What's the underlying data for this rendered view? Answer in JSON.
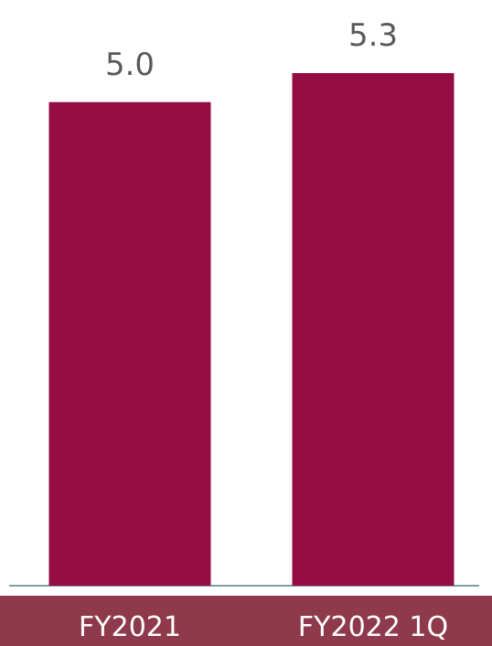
{
  "chart_data": {
    "type": "bar",
    "categories": [
      "FY2021",
      "FY2022 1Q"
    ],
    "values": [
      5.0,
      5.3
    ],
    "value_labels": [
      "5.0",
      "5.3"
    ],
    "title": "",
    "xlabel": "",
    "ylabel": "",
    "ylim": [
      0,
      5.3
    ],
    "grid": false,
    "legend": "none",
    "colors": {
      "bar": "#930c42",
      "category_band": "#8f3a4c",
      "baseline": "#4f7f86",
      "value_text": "#595959",
      "category_text": "#ffffff"
    }
  }
}
